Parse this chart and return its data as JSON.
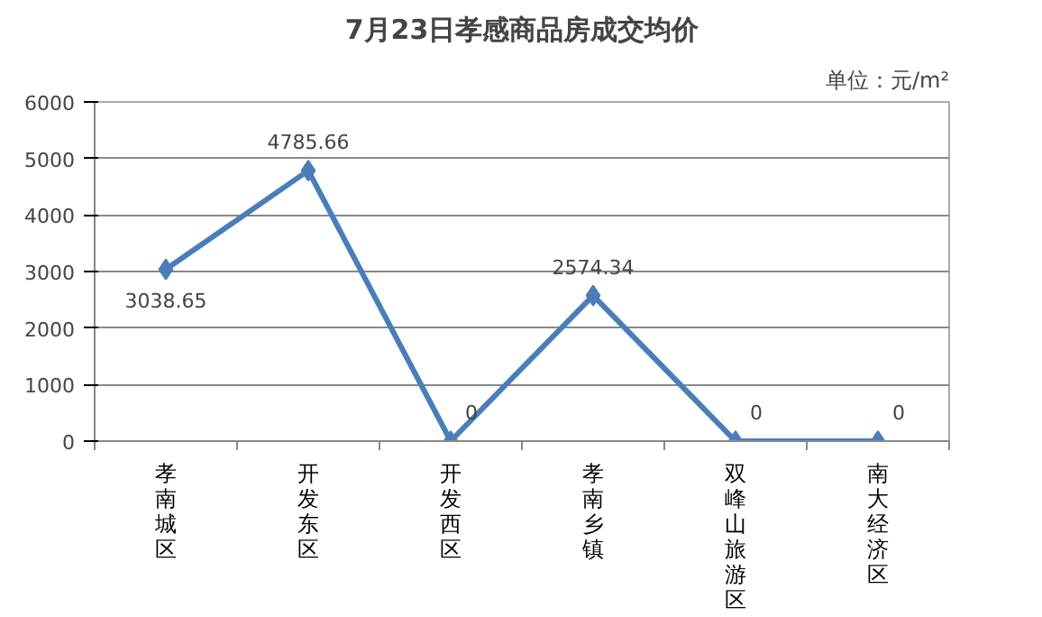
{
  "chart_data": {
    "type": "line",
    "title": "7月23日孝感商品房成交均价",
    "subtitle": "单位：元/m²",
    "categories": [
      "孝南城区",
      "开发东区",
      "开发西区",
      "孝南乡镇",
      "双峰山旅游区",
      "南大经济区"
    ],
    "series": [
      {
        "color": "#4a7ebb",
        "values": [
          3038.65,
          4785.66,
          0,
          2574.34,
          0,
          0
        ]
      }
    ],
    "ylim": [
      0,
      6000
    ],
    "yticks": [
      0,
      1000,
      2000,
      3000,
      4000,
      5000,
      6000
    ],
    "grid": "y",
    "marker": "diamond",
    "line_style": "solid",
    "data_labels": true
  }
}
